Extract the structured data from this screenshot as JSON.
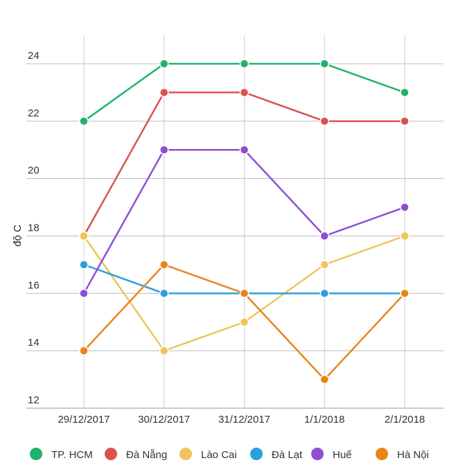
{
  "chart_data": {
    "type": "line",
    "title": "",
    "xlabel": "",
    "ylabel": "độ C",
    "ylim": [
      12,
      24
    ],
    "yticks": [
      12,
      14,
      16,
      18,
      20,
      22,
      24
    ],
    "grid": true,
    "legend_position": "bottom",
    "categories": [
      "29/12/2017",
      "30/12/2017",
      "31/12/2017",
      "1/1/2018",
      "2/1/2018"
    ],
    "series": [
      {
        "name": "TP. HCM",
        "color": "#1fb26a",
        "values": [
          22,
          24,
          24,
          24,
          23
        ]
      },
      {
        "name": "Đà Nẵng",
        "color": "#d9534f",
        "values": [
          18,
          23,
          23,
          22,
          22
        ]
      },
      {
        "name": "Lào Cai",
        "color": "#eec55a",
        "values": [
          18,
          14,
          15,
          17,
          18
        ]
      },
      {
        "name": "Đà Lạt",
        "color": "#2b9fdc",
        "values": [
          17,
          16,
          16,
          16,
          16
        ]
      },
      {
        "name": "Huế",
        "color": "#8e4fd4",
        "values": [
          16,
          21,
          21,
          18,
          19
        ]
      },
      {
        "name": "Hà Nội",
        "color": "#ea8419",
        "values": [
          14,
          17,
          16,
          13,
          16
        ]
      }
    ]
  }
}
